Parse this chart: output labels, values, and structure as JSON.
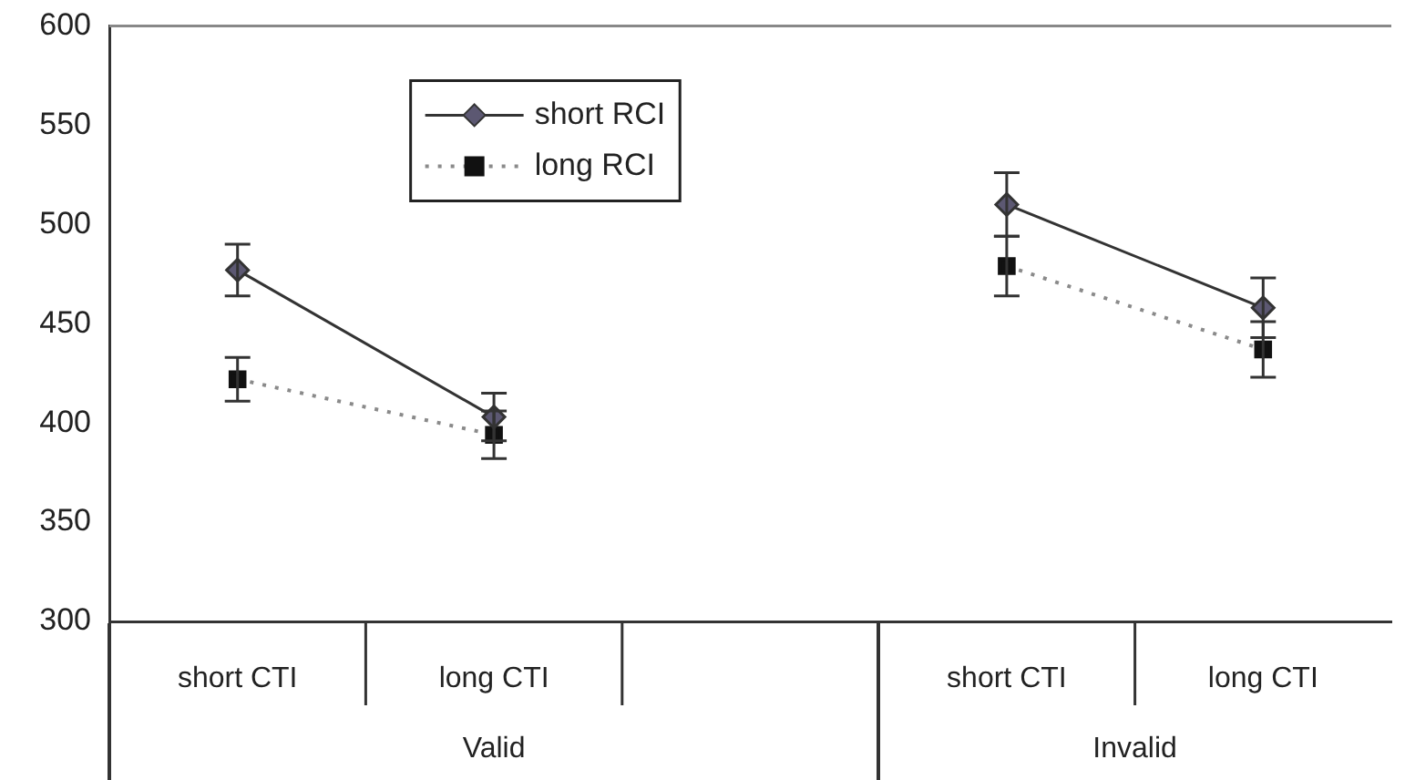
{
  "chart_data": {
    "type": "line",
    "categories": [
      "short CTI",
      "long CTI",
      null,
      "short CTI",
      "long CTI"
    ],
    "series": [
      {
        "name": "short RCI",
        "color": "#333333",
        "marker": "diamond",
        "line_style": "solid",
        "values": [
          477,
          403,
          null,
          510,
          458
        ],
        "errors": [
          13,
          12,
          null,
          16,
          15
        ]
      },
      {
        "name": "long RCI",
        "color": "#111111",
        "marker": "square",
        "line_style": "dotted",
        "values": [
          422,
          394,
          null,
          479,
          437
        ],
        "errors": [
          11,
          12,
          null,
          15,
          14
        ]
      }
    ],
    "ylim": [
      300,
      600
    ],
    "yticks": [
      300,
      350,
      400,
      450,
      500,
      550,
      600
    ],
    "grid": false,
    "legend": "top left",
    "annotations": [
      "Valid",
      "Invalid"
    ]
  }
}
